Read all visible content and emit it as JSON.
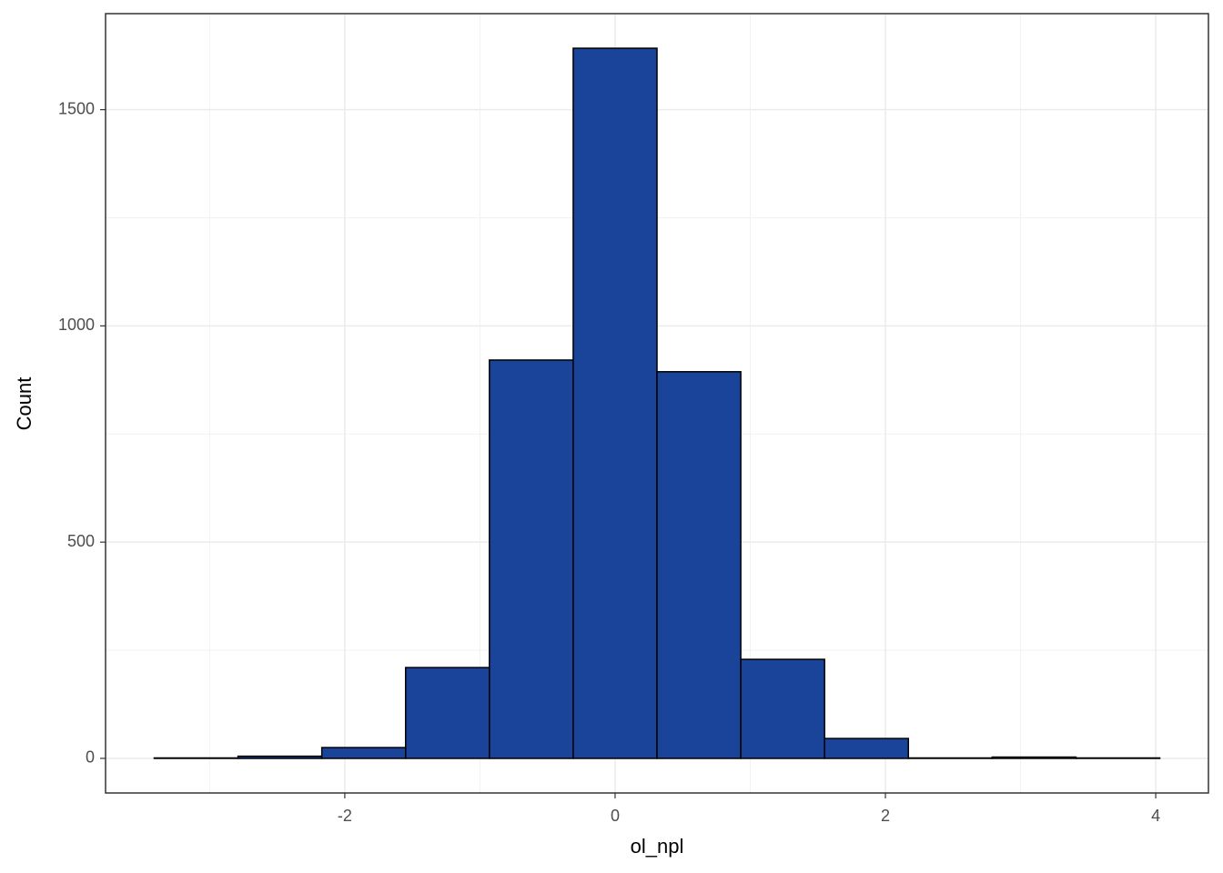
{
  "chart_data": {
    "type": "histogram",
    "x_label": "ol_npl",
    "y_label": "Count",
    "bins": [
      -3.41,
      -2.79,
      -2.17,
      -1.55,
      -0.93,
      -0.31,
      0.31,
      0.93,
      1.55,
      2.17,
      2.79,
      3.41,
      4.03
    ],
    "values": [
      1,
      5,
      25,
      210,
      921,
      1642,
      894,
      229,
      46,
      1,
      3,
      1
    ],
    "color": "#1a4499",
    "xlim": [
      -3.77,
      4.39
    ],
    "ylim": [
      -80,
      1722
    ],
    "xticks": [
      -2,
      0,
      2,
      4
    ],
    "yticks": [
      0,
      500,
      1000,
      1500
    ],
    "grid": true
  }
}
